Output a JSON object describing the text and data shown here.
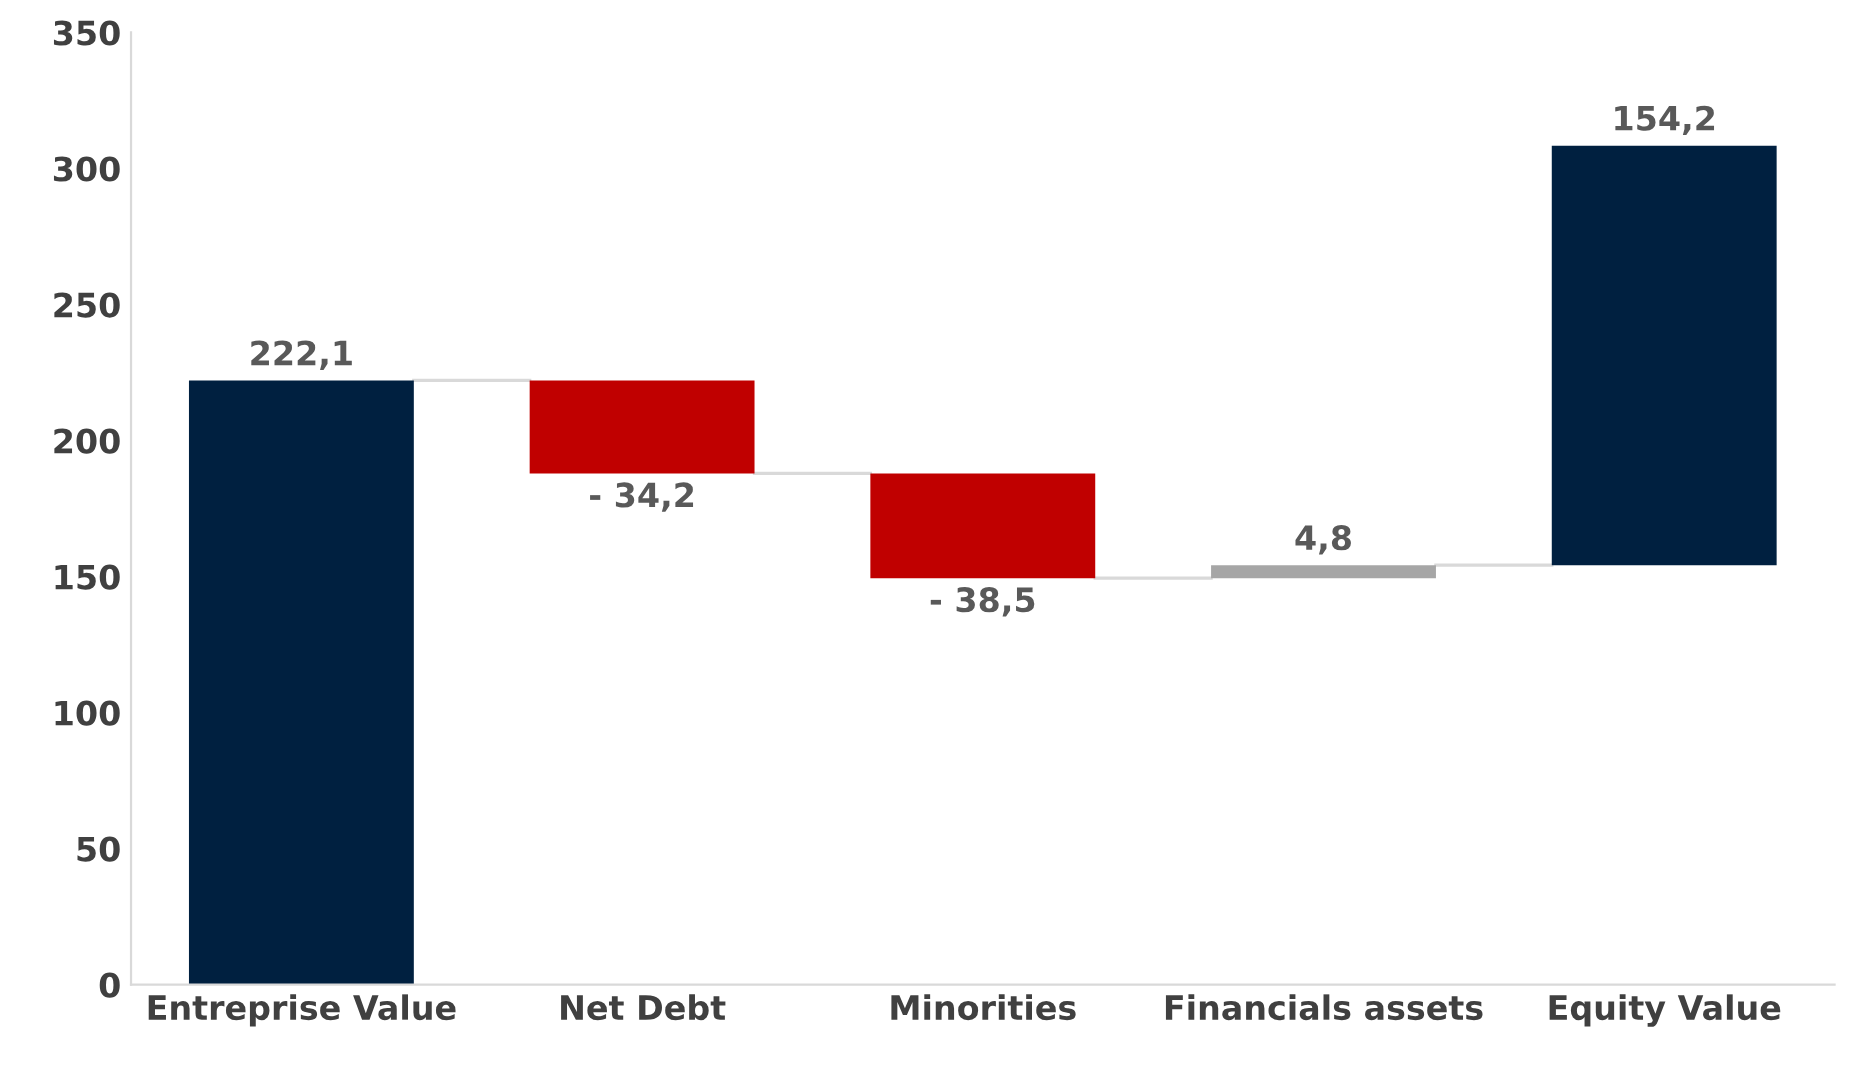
{
  "chart_data": {
    "type": "bar",
    "categories": [
      "Entreprise Value",
      "Net Debt",
      "Minorities",
      "Financials assets",
      "Equity Value"
    ],
    "values": [
      222.1,
      -34.2,
      -38.5,
      4.8,
      154.2
    ],
    "base": [
      0,
      222.1,
      187.9,
      149.4,
      154.2
    ],
    "colors": [
      "#002040",
      "#c00000",
      "#c00000",
      "#a6a6a6",
      "#002040"
    ],
    "value_labels": [
      "222,1",
      "- 34,2",
      "- 38,5",
      "4,8",
      "154,2"
    ],
    "ylim": [
      0,
      350
    ],
    "yticks": [
      0,
      50,
      100,
      150,
      200,
      250,
      300,
      350
    ],
    "grid": false,
    "legend": false
  }
}
